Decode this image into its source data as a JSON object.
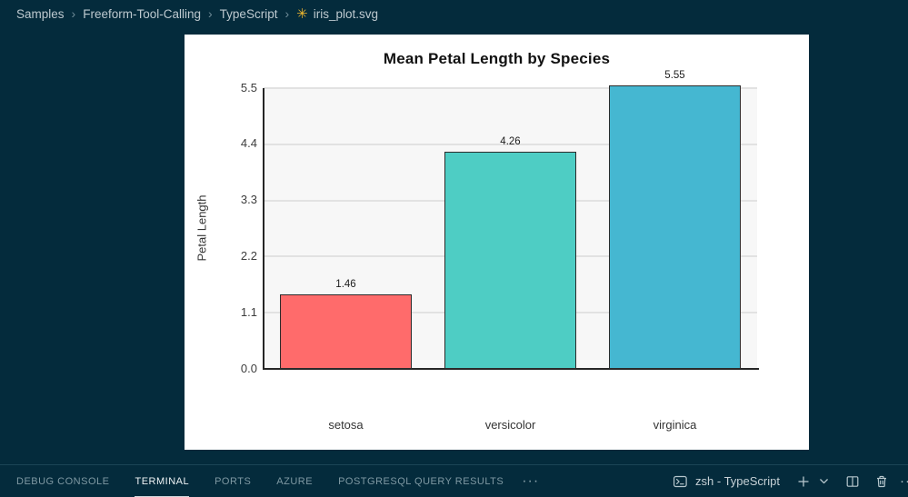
{
  "breadcrumb": {
    "items": [
      "Samples",
      "Freeform-Tool-Calling",
      "TypeScript",
      "iris_plot.svg"
    ],
    "separator": "›",
    "file_icon_glyph": "✳"
  },
  "chart_data": {
    "type": "bar",
    "title": "Mean Petal Length by Species",
    "xlabel": "",
    "ylabel": "Petal Length",
    "categories": [
      "setosa",
      "versicolor",
      "virginica"
    ],
    "values": [
      1.46,
      4.26,
      5.55
    ],
    "value_labels": [
      "1.46",
      "4.26",
      "5.55"
    ],
    "bar_colors": [
      "#FF6B6B",
      "#4ECDC4",
      "#45B7D1"
    ],
    "ylim": [
      0,
      5.5
    ],
    "yticks": [
      0.0,
      1.1,
      2.2,
      3.3,
      4.4,
      5.5
    ],
    "ytick_labels": [
      "0.0",
      "1.1",
      "2.2",
      "3.3",
      "4.4",
      "5.5"
    ],
    "grid": true,
    "legend": false,
    "plot_bg": "#f7f7f7",
    "grid_color": "#e2e2e2",
    "axis_color": "#262626"
  },
  "panel": {
    "tabs": [
      {
        "label": "DEBUG CONSOLE",
        "active": false
      },
      {
        "label": "TERMINAL",
        "active": true
      },
      {
        "label": "PORTS",
        "active": false
      },
      {
        "label": "AZURE",
        "active": false
      },
      {
        "label": "POSTGRESQL QUERY RESULTS",
        "active": false
      }
    ],
    "more_tabs_glyph": "···",
    "terminal_selector": "zsh - TypeScript",
    "overflow_glyph": "···"
  },
  "icons": {
    "svg_file": "✳",
    "breadcrumb_separator": "›",
    "terminal": "terminal-prompt-box",
    "new_terminal": "plus",
    "terminal_dropdown": "chevron-down",
    "split_terminal": "split-panes",
    "kill_terminal": "trash",
    "more_actions": "ellipsis"
  },
  "colors": {
    "background": "#042b3c",
    "panel_border": "#1c4556",
    "breadcrumb_text": "#bdc9cf",
    "tab_inactive": "#7f99a3",
    "tab_active": "#eef3f5",
    "icon": "#b7c7cd",
    "file_icon": "#ecb62f",
    "chart_panel_bg": "#ffffff"
  }
}
